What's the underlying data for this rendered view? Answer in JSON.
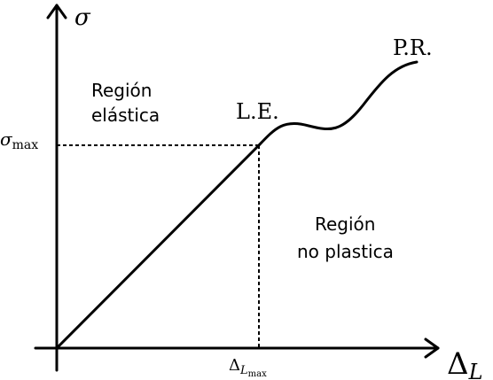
{
  "axes": {
    "y_symbol": "σ",
    "x_symbol": "Δ",
    "x_subscript": "L"
  },
  "ticks": {
    "y_tick_symbol": "σ",
    "y_tick_subscript": "max",
    "x_tick_symbol": "Δ",
    "x_tick_subscript": "L",
    "x_tick_subsubscript": "max"
  },
  "labels": {
    "elastic_line1": "Región",
    "elastic_line2": "elástica",
    "plastic_line1": "Región",
    "plastic_line2": "no plastica",
    "elastic_limit": "L.E.",
    "rupture_point": "P.R."
  }
}
